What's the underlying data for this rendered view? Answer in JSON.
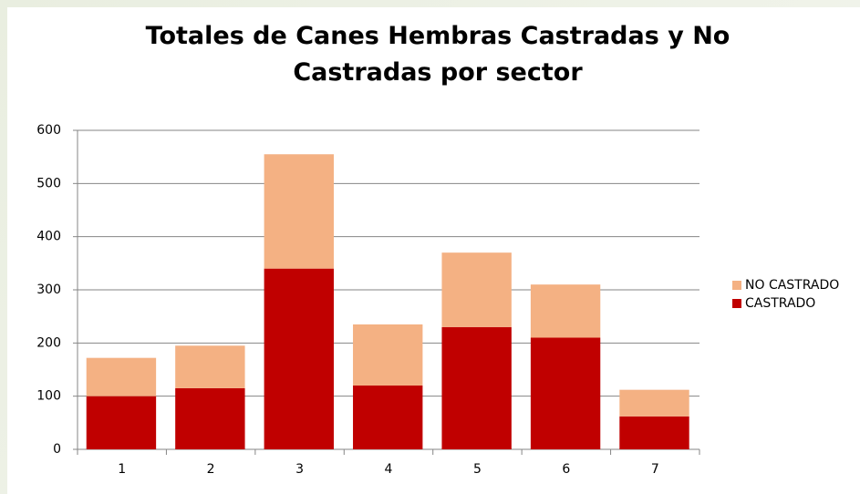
{
  "chart_data": {
    "type": "stacked-bar",
    "title": "Totales de Canes Hembras Castradas y No Castradas por sector",
    "categories": [
      "1",
      "2",
      "3",
      "4",
      "5",
      "6",
      "7"
    ],
    "series": [
      {
        "name": "CASTRADO",
        "color": "#c00000",
        "values": [
          100,
          115,
          340,
          120,
          230,
          210,
          62
        ]
      },
      {
        "name": "NO CASTRADO",
        "color": "#f4b183",
        "values": [
          72,
          80,
          215,
          115,
          140,
          100,
          50
        ]
      }
    ],
    "ylim": [
      0,
      600
    ],
    "yticks": [
      0,
      100,
      200,
      300,
      400,
      500,
      600
    ],
    "grid": true,
    "legend": "right"
  }
}
